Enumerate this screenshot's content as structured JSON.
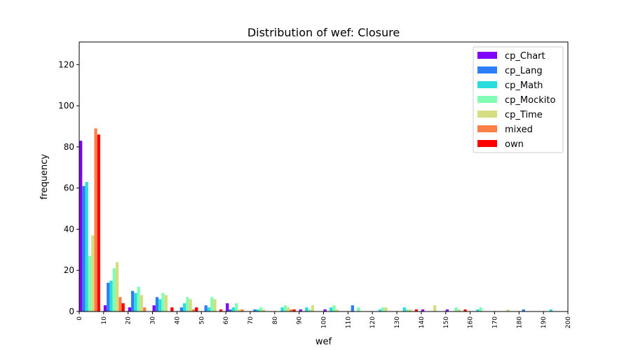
{
  "chart_data": {
    "type": "bar",
    "title": "Distribution of wef: Closure",
    "xlabel": "wef",
    "ylabel": "frequency",
    "xlim": [
      0,
      200
    ],
    "ylim": [
      0,
      131
    ],
    "xticks": [
      0,
      10,
      20,
      30,
      40,
      50,
      60,
      70,
      80,
      90,
      100,
      110,
      120,
      130,
      140,
      150,
      160,
      170,
      180,
      190,
      200
    ],
    "yticks": [
      0,
      20,
      40,
      60,
      80,
      100,
      120
    ],
    "bin_width": 10,
    "grid": false,
    "legend_position": "top-right",
    "bins": [
      0,
      10,
      20,
      30,
      40,
      50,
      60,
      70,
      80,
      90,
      100,
      110,
      120,
      130,
      140,
      150,
      160,
      170,
      180,
      190
    ],
    "series": [
      {
        "name": "cp_Chart",
        "color": "#8000ff",
        "values": [
          83,
          3,
          2,
          3,
          0,
          0,
          4,
          0,
          0,
          1,
          1,
          0,
          0,
          0,
          1,
          1,
          0,
          0,
          0,
          0
        ]
      },
      {
        "name": "cp_Lang",
        "color": "#2c7ef7",
        "values": [
          61,
          14,
          10,
          7,
          2,
          3,
          1,
          1,
          0,
          0,
          0,
          3,
          0,
          0,
          0,
          0,
          0,
          0,
          1,
          0
        ]
      },
      {
        "name": "cp_Math",
        "color": "#2adddd",
        "values": [
          63,
          15,
          9,
          6,
          4,
          2,
          2,
          1,
          2,
          2,
          2,
          0,
          1,
          2,
          0,
          0,
          1,
          0,
          0,
          1
        ]
      },
      {
        "name": "cp_Mockito",
        "color": "#80ffb4",
        "values": [
          27,
          21,
          12,
          9,
          7,
          7,
          4,
          2,
          3,
          1,
          3,
          2,
          2,
          1,
          0,
          2,
          2,
          0,
          0,
          0
        ]
      },
      {
        "name": "cp_Time",
        "color": "#d4dd80",
        "values": [
          37,
          24,
          8,
          8,
          6,
          6,
          1,
          1,
          2,
          3,
          1,
          0,
          2,
          1,
          3,
          1,
          0,
          1,
          0,
          0
        ]
      },
      {
        "name": "mixed",
        "color": "#ff8047",
        "values": [
          89,
          7,
          2,
          0,
          1,
          0,
          1,
          0,
          1,
          0,
          0,
          0,
          0,
          0,
          0,
          0,
          0,
          0,
          0,
          0
        ]
      },
      {
        "name": "own",
        "color": "#ff0000",
        "values": [
          86,
          4,
          0,
          2,
          2,
          1,
          0,
          0,
          1,
          0,
          0,
          0,
          0,
          1,
          0,
          1,
          0,
          0,
          0,
          0
        ]
      }
    ]
  }
}
